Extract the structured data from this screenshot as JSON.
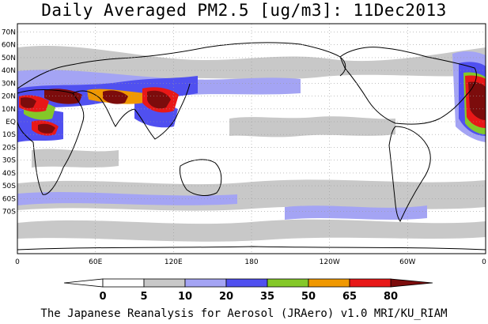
{
  "title": "Daily Averaged PM2.5 [ug/m3]: 11Dec2013",
  "footer": "The Japanese Reanalysis for Aerosol (JRAero) v1.0 MRI/KU_RIAM",
  "lat_labels": [
    "70N",
    "60N",
    "50N",
    "40N",
    "30N",
    "20N",
    "10N",
    "EQ",
    "10S",
    "20S",
    "30S",
    "40S",
    "50S",
    "60S",
    "70S"
  ],
  "lon_labels": [
    "0",
    "60E",
    "120E",
    "180",
    "120W",
    "60W",
    "0"
  ],
  "colorbar": {
    "levels": [
      "0",
      "5",
      "10",
      "20",
      "35",
      "50",
      "65",
      "80"
    ],
    "colors": [
      "#ffffff",
      "#c8c8c8",
      "#a4a4f4",
      "#5050f0",
      "#84c828",
      "#f09800",
      "#e81818",
      "#7c0c0c"
    ]
  }
}
